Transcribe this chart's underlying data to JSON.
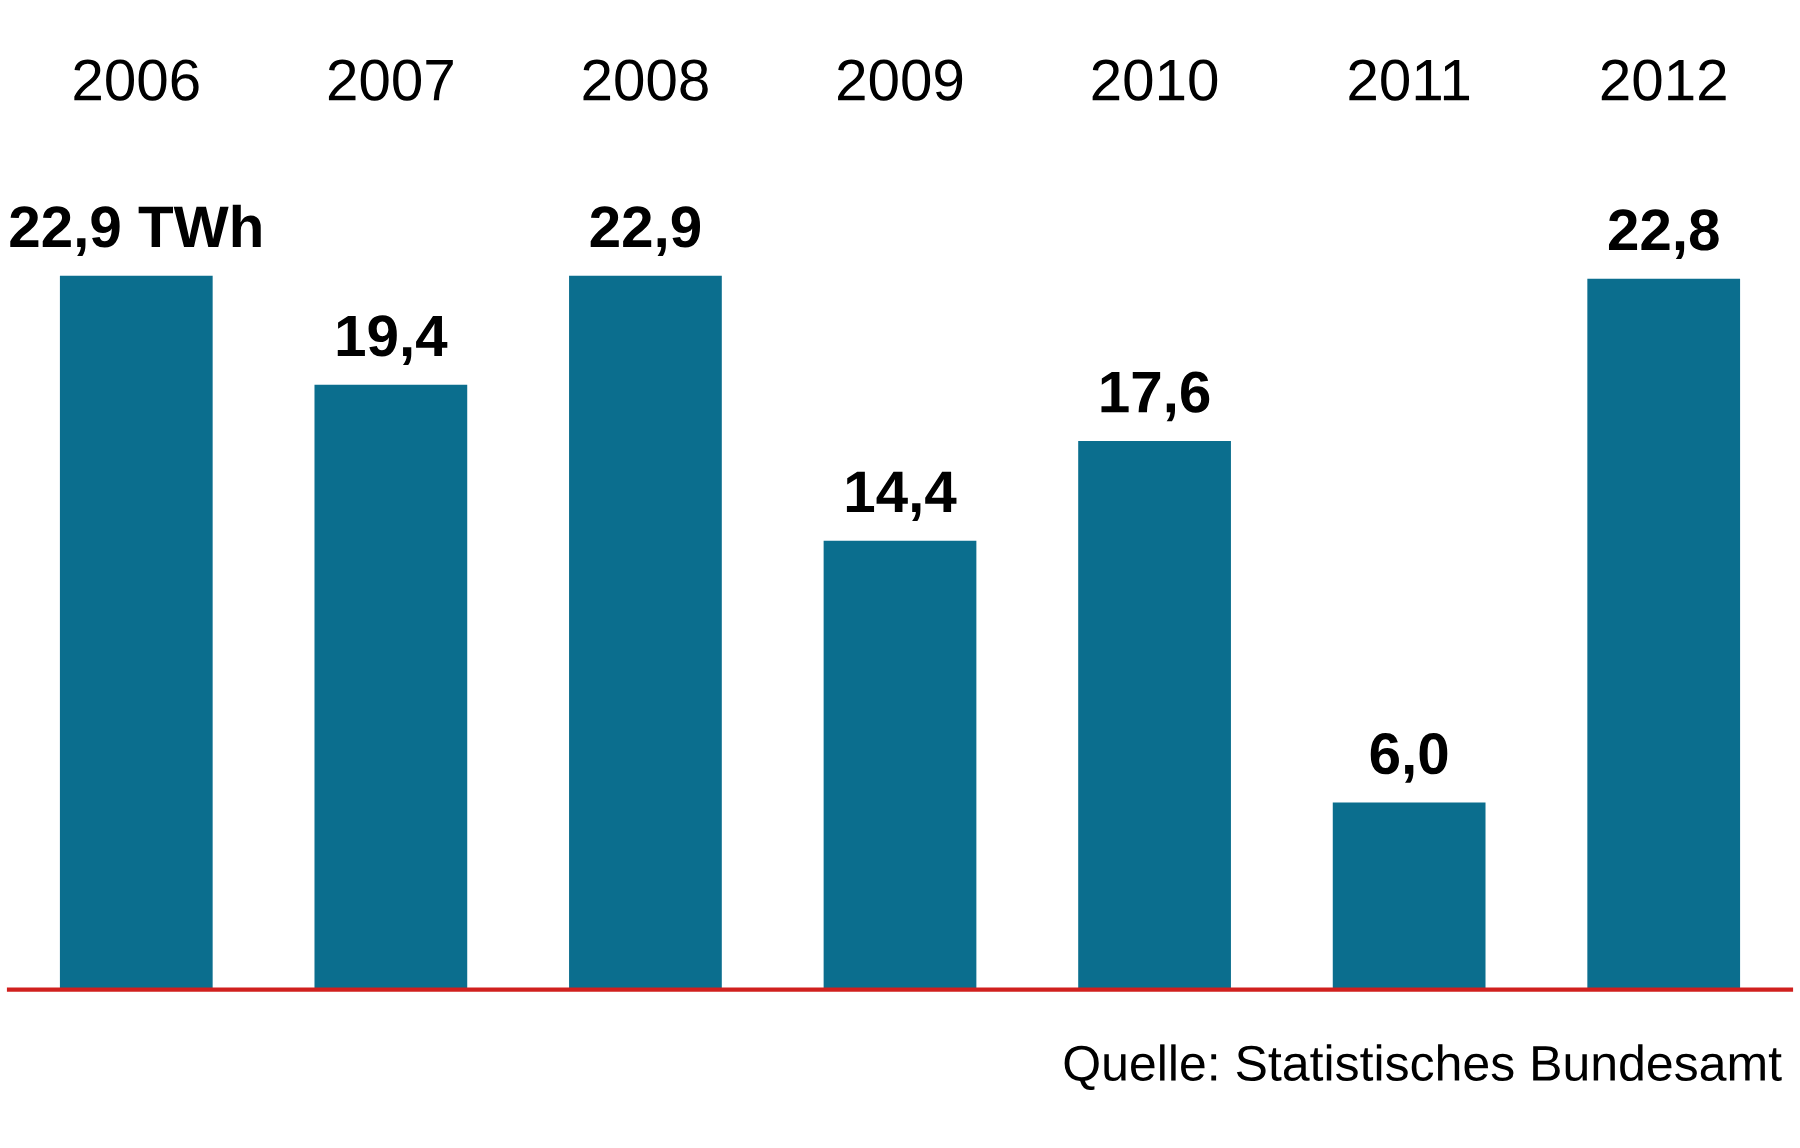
{
  "chart_data": {
    "type": "bar",
    "categories": [
      "2006",
      "2007",
      "2008",
      "2009",
      "2010",
      "2011",
      "2012"
    ],
    "values": [
      22.9,
      19.4,
      22.9,
      14.4,
      17.6,
      6.0,
      22.8
    ],
    "value_labels": [
      "22,9 TWh",
      "19,4",
      "22,9",
      "14,4",
      "17,6",
      "6,0",
      "22,8"
    ],
    "color": "#0b6e8e",
    "tick_labels": "x",
    "grid": false,
    "annotations": [
      "Quelle: Statistisches Bundesamt"
    ]
  }
}
